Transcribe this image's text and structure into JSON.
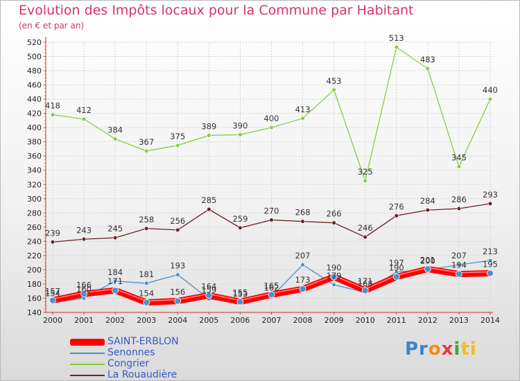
{
  "title": "Evolution des Impôts locaux pour la Commune par Habitant",
  "subtitle": "(en € et par an)",
  "logo": {
    "parts": [
      "Pr",
      "o",
      "x",
      "i",
      "ti"
    ],
    "colors": [
      "#3a86c8",
      "#f08a1c",
      "#e43a3a",
      "#3aa83a",
      "#f0c020"
    ]
  },
  "chart_data": {
    "type": "line",
    "x": [
      2000,
      2001,
      2002,
      2003,
      2004,
      2005,
      2006,
      2007,
      2008,
      2009,
      2010,
      2011,
      2012,
      2013,
      2014
    ],
    "ylim": [
      140,
      520
    ],
    "yticks": [
      140,
      160,
      180,
      200,
      220,
      240,
      260,
      280,
      300,
      320,
      340,
      360,
      380,
      400,
      420,
      440,
      460,
      480,
      500,
      520
    ],
    "grid": true,
    "legend_position": "bottom-left",
    "series": [
      {
        "name": "SAINT-ERBLON",
        "color": "#ff0000",
        "values": [
          157,
          166,
          171,
          154,
          156,
          164,
          155,
          165,
          173,
          190,
          171,
          190,
          201,
          194,
          195
        ],
        "labels_shown": [
          157,
          166,
          171,
          154,
          156,
          164,
          155,
          165,
          173,
          190,
          171,
          190,
          201,
          194,
          195
        ]
      },
      {
        "name": "Senonnes",
        "color": "#4a90d0",
        "values": [
          154,
          160,
          184,
          181,
          193,
          159,
          153,
          162,
          207,
          179,
          168,
          197,
          200,
          207,
          213
        ],
        "labels_shown": [
          154,
          160,
          184,
          181,
          193,
          159,
          153,
          162,
          207,
          179,
          168,
          197,
          200,
          207,
          213
        ]
      },
      {
        "name": "Congrier",
        "color": "#88cc44",
        "values": [
          418,
          412,
          384,
          367,
          375,
          389,
          390,
          400,
          413,
          453,
          325,
          513,
          483,
          345,
          440
        ],
        "labels_shown": [
          418,
          412,
          384,
          367,
          375,
          389,
          390,
          400,
          413,
          453,
          325,
          513,
          483,
          345,
          440
        ]
      },
      {
        "name": "La Rouaudière",
        "color": "#6b1f24",
        "values": [
          239,
          243,
          245,
          258,
          256,
          285,
          259,
          270,
          268,
          266,
          246,
          276,
          284,
          286,
          293
        ],
        "labels_shown": [
          239,
          243,
          245,
          258,
          256,
          285,
          259,
          270,
          268,
          266,
          246,
          276,
          284,
          286,
          293
        ]
      }
    ]
  }
}
